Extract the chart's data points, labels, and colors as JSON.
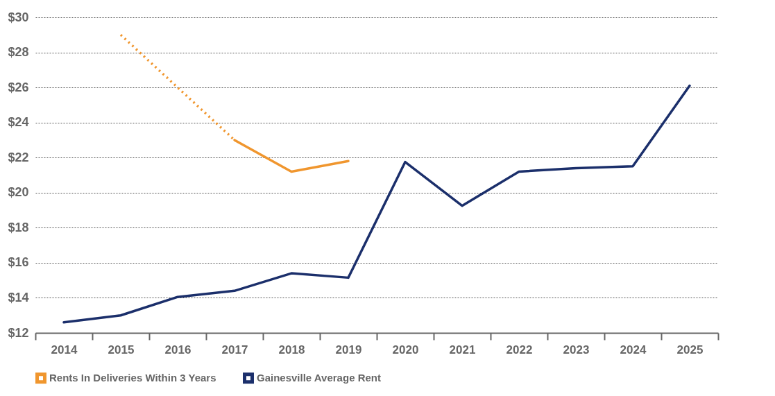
{
  "chart_data": {
    "type": "line",
    "categories": [
      "2014",
      "2015",
      "2016",
      "2017",
      "2018",
      "2019",
      "2020",
      "2021",
      "2022",
      "2023",
      "2024",
      "2025"
    ],
    "series": [
      {
        "color": "#f0962e",
        "line_style": "dotted",
        "values": [
          null,
          29,
          26,
          23,
          null,
          null,
          null,
          null,
          null,
          null,
          null,
          null
        ]
      },
      {
        "name": "Rents In Deliveries Within 3 Years",
        "color": "#f0962e",
        "line_style": "solid",
        "values": [
          null,
          null,
          null,
          23,
          21.2,
          21.8,
          null,
          null,
          null,
          null,
          null,
          null
        ]
      },
      {
        "name": "Gainesville Average Rent",
        "color": "#1b2f6b",
        "line_style": "solid",
        "values": [
          12.6,
          13.0,
          14.05,
          14.4,
          15.4,
          15.15,
          21.75,
          19.25,
          21.2,
          21.4,
          21.5,
          26.1
        ]
      }
    ],
    "ylim": [
      12,
      30
    ],
    "yticks": [
      {
        "value": 12,
        "label": "$12"
      },
      {
        "value": 14,
        "label": "$14"
      },
      {
        "value": 16,
        "label": "$16"
      },
      {
        "value": 18,
        "label": "$18"
      },
      {
        "value": 20,
        "label": "$20"
      },
      {
        "value": 22,
        "label": "$22"
      },
      {
        "value": 24,
        "label": "$24"
      },
      {
        "value": 26,
        "label": "$26"
      },
      {
        "value": 28,
        "label": "$28"
      },
      {
        "value": 30,
        "label": "$30"
      }
    ],
    "grid": "y",
    "legend": "bottom",
    "marker": "none"
  }
}
